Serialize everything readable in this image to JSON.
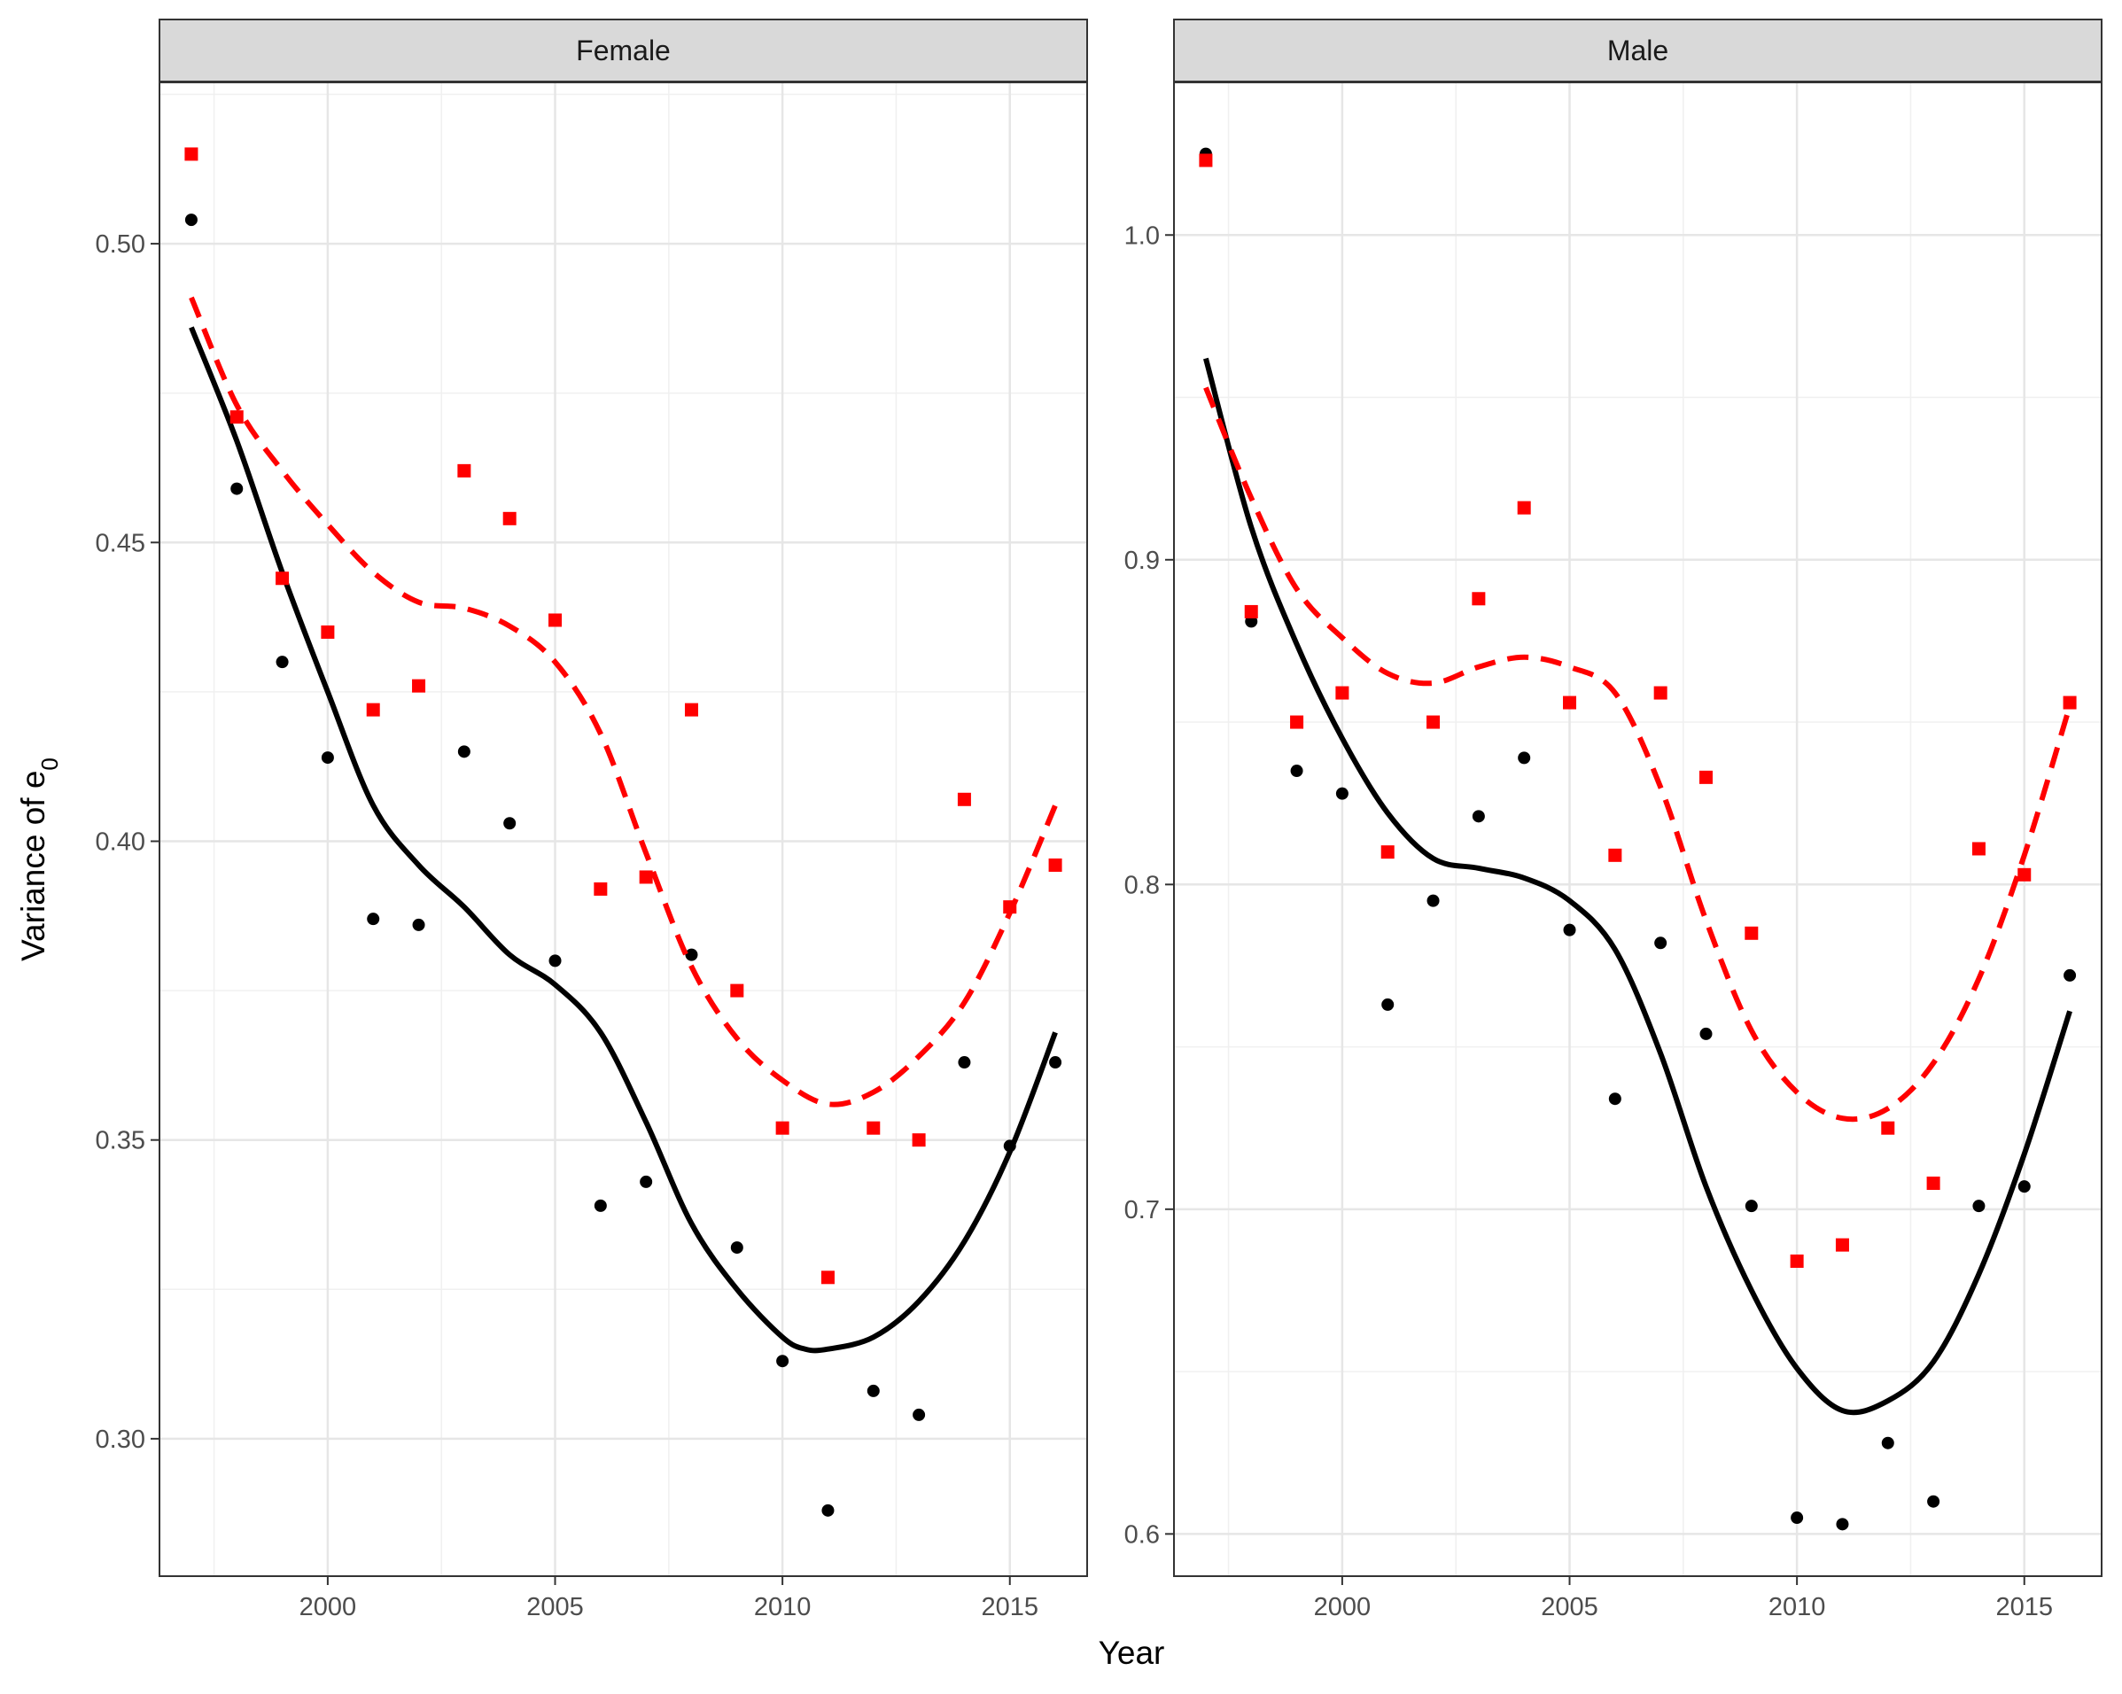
{
  "chart_data": {
    "type": "scatter",
    "xlabel": "Year",
    "ylabel": "Variance of e",
    "ylabel_subscript": "0",
    "xlim": [
      1996.3,
      2016.7
    ],
    "colors": {
      "points_a": "#000000",
      "points_b": "#ff0000",
      "smooth_a": "#000000",
      "smooth_b": "#ff0000"
    },
    "panels": [
      {
        "strip": "Female",
        "ylim": [
          0.277,
          0.527
        ],
        "x_ticks": [
          2000,
          2005,
          2010,
          2015
        ],
        "x_tick_labels": [
          "2000",
          "2005",
          "2010",
          "2015"
        ],
        "y_ticks": [
          0.3,
          0.35,
          0.4,
          0.45,
          0.5
        ],
        "y_tick_labels": [
          "0.30",
          "0.35",
          "0.40",
          "0.45",
          "0.50"
        ],
        "series": [
          {
            "marker": "circle",
            "x": [
              1997,
              1998,
              1999,
              2000,
              2001,
              2002,
              2003,
              2004,
              2005,
              2006,
              2007,
              2008,
              2009,
              2010,
              2011,
              2012,
              2013,
              2014,
              2015,
              2016
            ],
            "y": [
              0.504,
              0.459,
              0.43,
              0.414,
              0.387,
              0.386,
              0.415,
              0.403,
              0.38,
              0.339,
              0.343,
              0.381,
              0.332,
              0.313,
              0.288,
              0.308,
              0.304,
              0.363,
              0.349,
              0.363
            ],
            "smooth_x": [
              1997,
              1998,
              1999,
              2000,
              2001,
              2002,
              2003,
              2004,
              2005,
              2006,
              2007,
              2008,
              2009,
              2010,
              2010.5,
              2011,
              2012,
              2013,
              2014,
              2015,
              2016
            ],
            "smooth_y": [
              0.486,
              0.467,
              0.445,
              0.425,
              0.406,
              0.396,
              0.389,
              0.381,
              0.376,
              0.368,
              0.353,
              0.336,
              0.325,
              0.317,
              0.315,
              0.315,
              0.317,
              0.323,
              0.333,
              0.348,
              0.368
            ],
            "line": "solid"
          },
          {
            "marker": "square",
            "x": [
              1997,
              1998,
              1999,
              2000,
              2001,
              2002,
              2003,
              2004,
              2005,
              2006,
              2007,
              2008,
              2009,
              2010,
              2011,
              2012,
              2013,
              2014,
              2015,
              2016
            ],
            "y": [
              0.515,
              0.471,
              0.444,
              0.435,
              0.422,
              0.426,
              0.462,
              0.454,
              0.437,
              0.392,
              0.394,
              0.422,
              0.375,
              0.352,
              0.327,
              0.352,
              0.35,
              0.407,
              0.389,
              0.396
            ],
            "smooth_x": [
              1997,
              1998,
              1999,
              2000,
              2001,
              2002,
              2003,
              2004,
              2005,
              2006,
              2007,
              2008,
              2009,
              2010,
              2011,
              2012,
              2013,
              2014,
              2015,
              2016
            ],
            "smooth_y": [
              0.491,
              0.473,
              0.462,
              0.453,
              0.445,
              0.44,
              0.439,
              0.436,
              0.43,
              0.418,
              0.398,
              0.379,
              0.367,
              0.36,
              0.356,
              0.358,
              0.364,
              0.373,
              0.388,
              0.406
            ],
            "line": "dashed"
          }
        ]
      },
      {
        "strip": "Male",
        "ylim": [
          0.587,
          1.047
        ],
        "x_ticks": [
          2000,
          2005,
          2010,
          2015
        ],
        "x_tick_labels": [
          "2000",
          "2005",
          "2010",
          "2015"
        ],
        "y_ticks": [
          0.6,
          0.7,
          0.8,
          0.9,
          1.0
        ],
        "y_tick_labels": [
          "0.6",
          "0.7",
          "0.8",
          "0.9",
          "1.0"
        ],
        "series": [
          {
            "marker": "circle",
            "x": [
              1997,
              1998,
              1999,
              2000,
              2001,
              2002,
              2003,
              2004,
              2005,
              2006,
              2007,
              2008,
              2009,
              2010,
              2011,
              2012,
              2013,
              2014,
              2015,
              2016
            ],
            "y": [
              1.025,
              0.881,
              0.835,
              0.828,
              0.763,
              0.795,
              0.821,
              0.839,
              0.786,
              0.734,
              0.782,
              0.754,
              0.701,
              0.605,
              0.603,
              0.628,
              0.61,
              0.701,
              0.707,
              0.772
            ],
            "smooth_x": [
              1997,
              1998,
              1999,
              2000,
              2001,
              2002,
              2003,
              2004,
              2005,
              2006,
              2007,
              2008,
              2009,
              2010,
              2011,
              2012,
              2013,
              2014,
              2015,
              2016
            ],
            "smooth_y": [
              0.962,
              0.91,
              0.874,
              0.845,
              0.822,
              0.808,
              0.805,
              0.802,
              0.795,
              0.78,
              0.748,
              0.707,
              0.675,
              0.651,
              0.638,
              0.641,
              0.653,
              0.68,
              0.717,
              0.761
            ],
            "line": "solid"
          },
          {
            "marker": "square",
            "x": [
              1997,
              1998,
              1999,
              2000,
              2001,
              2002,
              2003,
              2004,
              2005,
              2006,
              2007,
              2008,
              2009,
              2010,
              2011,
              2012,
              2013,
              2014,
              2015,
              2016
            ],
            "y": [
              1.023,
              0.884,
              0.85,
              0.859,
              0.81,
              0.85,
              0.888,
              0.916,
              0.856,
              0.809,
              0.859,
              0.833,
              0.785,
              0.684,
              0.689,
              0.725,
              0.708,
              0.811,
              0.803,
              0.856
            ],
            "smooth_x": [
              1997,
              1998,
              1999,
              2000,
              2001,
              2002,
              2003,
              2004,
              2005,
              2006,
              2007,
              2008,
              2009,
              2010,
              2011,
              2012,
              2013,
              2014,
              2015,
              2016
            ],
            "smooth_y": [
              0.953,
              0.919,
              0.891,
              0.876,
              0.865,
              0.862,
              0.867,
              0.87,
              0.867,
              0.859,
              0.83,
              0.789,
              0.755,
              0.736,
              0.728,
              0.731,
              0.745,
              0.771,
              0.809,
              0.855
            ],
            "line": "dashed"
          }
        ]
      }
    ]
  }
}
